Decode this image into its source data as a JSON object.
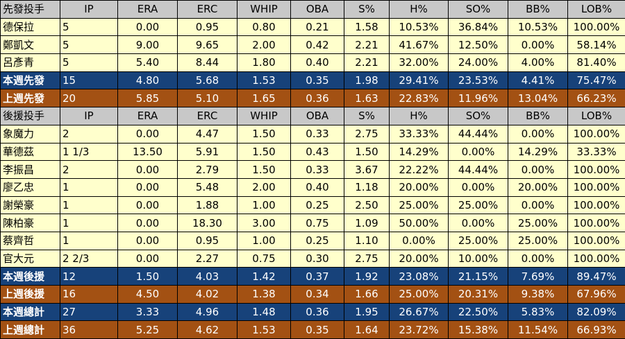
{
  "colors": {
    "header_bg": "#c8c8c8",
    "player_bg": "#ffffcc",
    "this_week_bg": "#17427a",
    "last_week_bg": "#a35113"
  },
  "rows": [
    {
      "kind": "header",
      "cells": [
        "先發投手",
        "IP",
        "ERA",
        "ERC",
        "WHIP",
        "OBA",
        "S%",
        "H%",
        "SO%",
        "BB%",
        "LOB%"
      ]
    },
    {
      "kind": "player",
      "cells": [
        "德保拉",
        "5",
        "0.00",
        "0.95",
        "0.80",
        "0.21",
        "1.58",
        "10.53%",
        "36.84%",
        "10.53%",
        "100.00%"
      ]
    },
    {
      "kind": "player",
      "cells": [
        "鄭凱文",
        "5",
        "9.00",
        "9.65",
        "2.00",
        "0.42",
        "2.21",
        "41.67%",
        "12.50%",
        "0.00%",
        "58.14%"
      ]
    },
    {
      "kind": "player",
      "cells": [
        "呂彥青",
        "5",
        "5.40",
        "8.44",
        "1.80",
        "0.40",
        "2.21",
        "32.00%",
        "24.00%",
        "4.00%",
        "81.40%"
      ]
    },
    {
      "kind": "total-blue",
      "cells": [
        "本週先發",
        "15",
        "4.80",
        "5.68",
        "1.53",
        "0.35",
        "1.98",
        "29.41%",
        "23.53%",
        "4.41%",
        "75.47%"
      ]
    },
    {
      "kind": "total-brown",
      "cells": [
        "上週先發",
        "20",
        "5.85",
        "5.10",
        "1.65",
        "0.36",
        "1.63",
        "22.83%",
        "11.96%",
        "13.04%",
        "66.23%"
      ]
    },
    {
      "kind": "header",
      "cells": [
        "後援投手",
        "IP",
        "ERA",
        "ERC",
        "WHIP",
        "OBA",
        "S%",
        "H%",
        "SO%",
        "BB%",
        "LOB%"
      ]
    },
    {
      "kind": "player",
      "cells": [
        "象魔力",
        "2",
        "0.00",
        "4.47",
        "1.50",
        "0.33",
        "2.75",
        "33.33%",
        "44.44%",
        "0.00%",
        "100.00%"
      ]
    },
    {
      "kind": "player",
      "cells": [
        "華德茲",
        "1 1/3",
        "13.50",
        "5.91",
        "1.50",
        "0.43",
        "1.50",
        "14.29%",
        "0.00%",
        "14.29%",
        "33.33%"
      ]
    },
    {
      "kind": "player",
      "cells": [
        "李振昌",
        "2",
        "0.00",
        "2.79",
        "1.50",
        "0.33",
        "3.67",
        "22.22%",
        "44.44%",
        "0.00%",
        "100.00%"
      ]
    },
    {
      "kind": "player",
      "cells": [
        "廖乙忠",
        "1",
        "0.00",
        "5.48",
        "2.00",
        "0.40",
        "1.18",
        "20.00%",
        "0.00%",
        "20.00%",
        "100.00%"
      ]
    },
    {
      "kind": "player",
      "cells": [
        "謝榮豪",
        "1",
        "0.00",
        "1.88",
        "1.00",
        "0.25",
        "2.50",
        "25.00%",
        "25.00%",
        "0.00%",
        "100.00%"
      ]
    },
    {
      "kind": "player",
      "cells": [
        "陳柏豪",
        "1",
        "0.00",
        "18.30",
        "3.00",
        "0.75",
        "1.09",
        "50.00%",
        "0.00%",
        "25.00%",
        "100.00%"
      ]
    },
    {
      "kind": "player",
      "cells": [
        "蔡齊哲",
        "1",
        "0.00",
        "0.95",
        "1.00",
        "0.25",
        "1.10",
        "0.00%",
        "25.00%",
        "25.00%",
        "100.00%"
      ]
    },
    {
      "kind": "player",
      "cells": [
        "官大元",
        "2 2/3",
        "0.00",
        "2.27",
        "0.75",
        "0.30",
        "2.75",
        "20.00%",
        "10.00%",
        "0.00%",
        "100.00%"
      ]
    },
    {
      "kind": "total-blue",
      "cells": [
        "本週後援",
        "12",
        "1.50",
        "4.03",
        "1.42",
        "0.37",
        "1.92",
        "23.08%",
        "21.15%",
        "7.69%",
        "89.47%"
      ]
    },
    {
      "kind": "total-brown",
      "cells": [
        "上週後援",
        "16",
        "4.50",
        "4.02",
        "1.38",
        "0.34",
        "1.66",
        "25.00%",
        "20.31%",
        "9.38%",
        "67.96%"
      ]
    },
    {
      "kind": "total-blue",
      "cells": [
        "本週總計",
        "27",
        "3.33",
        "4.96",
        "1.48",
        "0.36",
        "1.95",
        "26.67%",
        "22.50%",
        "5.83%",
        "82.09%"
      ]
    },
    {
      "kind": "total-brown",
      "cells": [
        "上週總計",
        "36",
        "5.25",
        "4.62",
        "1.53",
        "0.35",
        "1.64",
        "23.72%",
        "15.38%",
        "11.54%",
        "66.93%"
      ]
    }
  ]
}
